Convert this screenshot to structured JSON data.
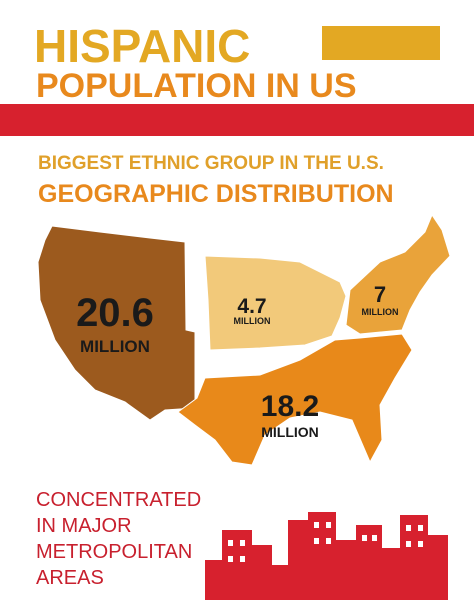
{
  "header": {
    "title": "HISPANIC",
    "subtitle": "POPULATION IN US"
  },
  "section": {
    "heading": "BIGGEST ETHNIC GROUP IN THE U.S.",
    "subheading": "GEOGRAPHIC DISTRIBUTION"
  },
  "regions": [
    {
      "value": 20.6,
      "unit": "MILLION"
    },
    {
      "value": 4.7,
      "unit": "MILLION"
    },
    {
      "value": 7,
      "unit": "MILLION"
    },
    {
      "value": 18.2,
      "unit": "MILLION"
    }
  ],
  "footer": {
    "lines": [
      "CONCENTRATED",
      "IN MAJOR",
      "METROPOLITAN",
      "AREAS"
    ]
  }
}
